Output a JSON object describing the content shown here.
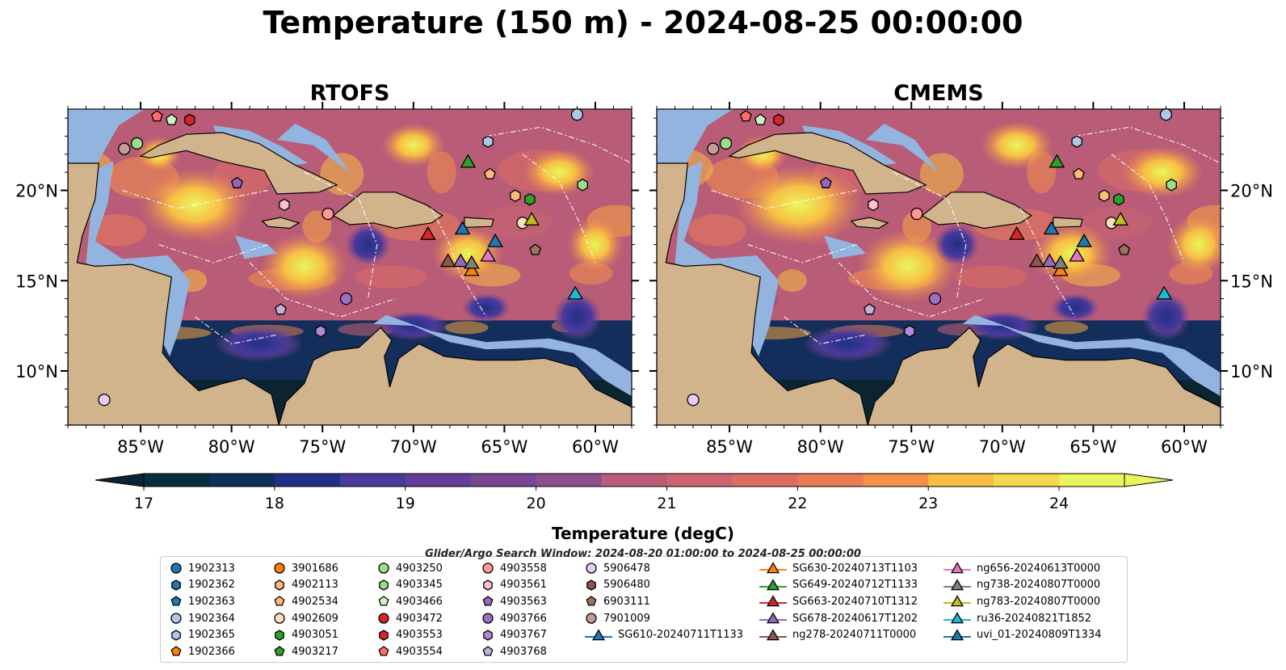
{
  "suptitle": "Temperature (150 m) - 2024-08-25 00:00:00",
  "panels": [
    {
      "title": "RTOFS"
    },
    {
      "title": "CMEMS"
    }
  ],
  "colors": {
    "land": "#d2b48c",
    "shelf": "#93b4df",
    "ocean_dark": "#0a2432",
    "eez_line": "#ffffff",
    "scale": [
      "#0b2c3e",
      "#132e5a",
      "#222f85",
      "#33339a",
      "#4a3a9b",
      "#623f98",
      "#774792",
      "#8c4f8b",
      "#a15582",
      "#b85c77",
      "#cb6572",
      "#dc6d64",
      "#e97b57",
      "#f3904a",
      "#f7a442",
      "#f7be44",
      "#f5d84b",
      "#e9f65b"
    ]
  },
  "chart_data": {
    "type": "heatmap",
    "title": "Temperature (150 m) - 2024-08-25 00:00:00",
    "panels": [
      "RTOFS",
      "CMEMS"
    ],
    "xlim": [
      -89,
      -58
    ],
    "ylim": [
      7,
      24.5
    ],
    "x_ticks": [
      -85,
      -80,
      -75,
      -70,
      -65,
      -60
    ],
    "x_tick_labels": [
      "85°W",
      "80°W",
      "75°W",
      "70°W",
      "65°W",
      "60°W"
    ],
    "y_ticks": [
      10,
      15,
      20
    ],
    "y_tick_labels": [
      "10°N",
      "15°N",
      "20°N"
    ],
    "colorbar": {
      "label": "Temperature (degC)",
      "min": 17,
      "max": 24.5,
      "step": 0.5,
      "extend": "both",
      "ticks": [
        17,
        18,
        19,
        20,
        21,
        22,
        23,
        24
      ]
    },
    "search_window": "Glider/Argo Search Window: 2024-08-20 01:00:00 to 2024-08-25 00:00:00",
    "platforms": [
      {
        "name": "1902313",
        "marker": "circle",
        "color": "#1f77b4"
      },
      {
        "name": "1902362",
        "marker": "hexagon",
        "color": "#1f77b4"
      },
      {
        "name": "1902363",
        "marker": "pentagon",
        "color": "#1f77b4"
      },
      {
        "name": "1902364",
        "marker": "circle",
        "color": "#aec7e8",
        "lon": -61.0,
        "lat": 24.2
      },
      {
        "name": "1902365",
        "marker": "hexagon",
        "color": "#aec7e8",
        "lon": -65.9,
        "lat": 22.7
      },
      {
        "name": "1902366",
        "marker": "pentagon",
        "color": "#ff7f0e"
      },
      {
        "name": "3901686",
        "marker": "circle",
        "color": "#ff7f0e"
      },
      {
        "name": "4902113",
        "marker": "hexagon",
        "color": "#ffbb78",
        "lon": -64.4,
        "lat": 19.7
      },
      {
        "name": "4902534",
        "marker": "pentagon",
        "color": "#ffbb78",
        "lon": -65.8,
        "lat": 20.9
      },
      {
        "name": "4902609",
        "marker": "circle",
        "color": "#ffdfb8",
        "lon": -64.0,
        "lat": 18.2
      },
      {
        "name": "4903051",
        "marker": "hexagon",
        "color": "#2ca02c",
        "lon": -63.6,
        "lat": 19.5
      },
      {
        "name": "4903217",
        "marker": "pentagon",
        "color": "#2ca02c"
      },
      {
        "name": "4903250",
        "marker": "circle",
        "color": "#98df8a",
        "lon": -85.2,
        "lat": 22.6
      },
      {
        "name": "4903345",
        "marker": "hexagon",
        "color": "#98df8a",
        "lon": -60.7,
        "lat": 20.3
      },
      {
        "name": "4903466",
        "marker": "pentagon",
        "color": "#ccf5c2",
        "lon": -83.3,
        "lat": 23.9
      },
      {
        "name": "4903472",
        "marker": "circle",
        "color": "#d62728"
      },
      {
        "name": "4903553",
        "marker": "hexagon",
        "color": "#d62728",
        "lon": -82.3,
        "lat": 23.9
      },
      {
        "name": "4903554",
        "marker": "pentagon",
        "color": "#ff6b6b",
        "lon": -84.1,
        "lat": 24.1
      },
      {
        "name": "4903558",
        "marker": "circle",
        "color": "#ff9896",
        "lon": -74.7,
        "lat": 18.7
      },
      {
        "name": "4903561",
        "marker": "hexagon",
        "color": "#ffc0cb",
        "lon": -77.1,
        "lat": 19.2
      },
      {
        "name": "4903563",
        "marker": "pentagon",
        "color": "#9467bd",
        "lon": -79.7,
        "lat": 20.4
      },
      {
        "name": "4903766",
        "marker": "circle",
        "color": "#9a6fc4",
        "lon": -73.7,
        "lat": 14.0
      },
      {
        "name": "4903767",
        "marker": "hexagon",
        "color": "#b08ad6",
        "lon": -75.1,
        "lat": 12.2
      },
      {
        "name": "4903768",
        "marker": "pentagon",
        "color": "#c5b0d5",
        "lon": -77.3,
        "lat": 13.4
      },
      {
        "name": "5906478",
        "marker": "circle",
        "color": "#e6ccf5",
        "lon": -87.0,
        "lat": 8.4
      },
      {
        "name": "5906480",
        "marker": "hexagon",
        "color": "#8c564b"
      },
      {
        "name": "6903111",
        "marker": "pentagon",
        "color": "#a0705e",
        "lon": -63.3,
        "lat": 16.7
      },
      {
        "name": "7901009",
        "marker": "circle",
        "color": "#c49c94",
        "lon": -85.9,
        "lat": 22.3
      },
      {
        "name": "SG610-20240711T1133",
        "marker": "triangle",
        "color": "#1f77b4",
        "lon": -67.3,
        "lat": 17.9
      },
      {
        "name": "SG630-20240713T1103",
        "marker": "triangle",
        "color": "#ff7f0e",
        "lon": -66.8,
        "lat": 15.6
      },
      {
        "name": "SG649-20240712T1133",
        "marker": "triangle",
        "color": "#2ca02c",
        "lon": -67.0,
        "lat": 21.6
      },
      {
        "name": "SG663-20240710T1312",
        "marker": "triangle",
        "color": "#d62728",
        "lon": -69.2,
        "lat": 17.6
      },
      {
        "name": "SG678-20240617T1202",
        "marker": "triangle",
        "color": "#9467bd",
        "lon": -67.4,
        "lat": 16.1
      },
      {
        "name": "ng278-20240711T0000",
        "marker": "triangle",
        "color": "#8c564b",
        "lon": -68.1,
        "lat": 16.1
      },
      {
        "name": "ng656-20240613T0000",
        "marker": "triangle",
        "color": "#e377c2",
        "lon": -65.9,
        "lat": 16.4
      },
      {
        "name": "ng738-20240807T0000",
        "marker": "triangle",
        "color": "#7f7f7f",
        "lon": -66.8,
        "lat": 16.0
      },
      {
        "name": "ng783-20240807T0000",
        "marker": "triangle",
        "color": "#bcbd22",
        "lon": -63.5,
        "lat": 18.4
      },
      {
        "name": "ru36-20240821T1852",
        "marker": "triangle",
        "color": "#17becf",
        "lon": -61.1,
        "lat": 14.3
      },
      {
        "name": "uvi_01-20240809T1334",
        "marker": "triangle",
        "color": "#1f77b4",
        "lon": -65.5,
        "lat": 17.2
      }
    ]
  }
}
